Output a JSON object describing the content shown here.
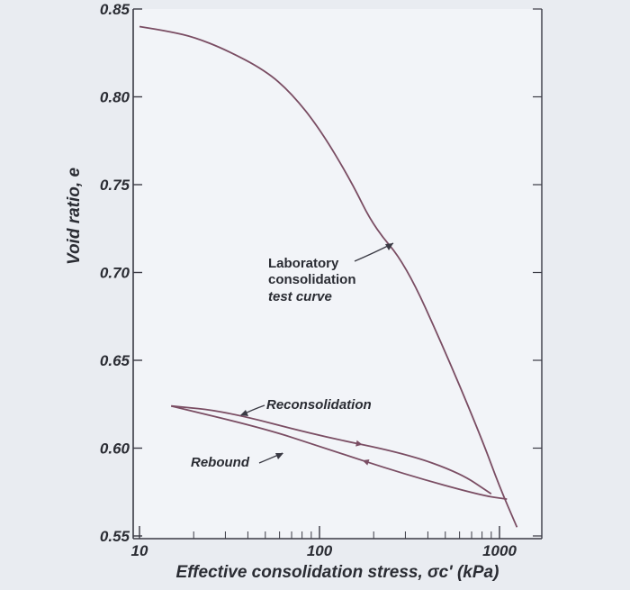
{
  "chart_data": {
    "type": "line",
    "x_scale": "log",
    "xlim": [
      10,
      1500
    ],
    "ylim": [
      0.55,
      0.86
    ],
    "x_ticks": [
      "10",
      "100",
      "1000"
    ],
    "y_ticks": [
      "0.55",
      "0.60",
      "0.65",
      "0.70",
      "0.75",
      "0.80",
      "0.85"
    ],
    "xlabel": "Effective consolidation stress, σc' (kPa)",
    "ylabel": "Void ratio, e",
    "grid": false,
    "series": [
      {
        "name": "Laboratory consolidation test curve",
        "x": [
          10,
          15,
          20,
          30,
          50,
          70,
          100,
          150,
          200,
          300,
          500,
          800,
          1000,
          1250
        ],
        "y": [
          0.84,
          0.837,
          0.834,
          0.827,
          0.815,
          0.802,
          0.782,
          0.752,
          0.726,
          0.705,
          0.655,
          0.605,
          0.578,
          0.555
        ],
        "color": "#7a4d63"
      },
      {
        "name": "Rebound",
        "x": [
          1100,
          800,
          300,
          100,
          50,
          15
        ],
        "y": [
          0.571,
          0.573,
          0.585,
          0.601,
          0.611,
          0.624
        ],
        "color": "#7a4d63"
      },
      {
        "name": "Reconsolidation",
        "x": [
          15,
          30,
          100,
          300,
          600,
          900
        ],
        "y": [
          0.624,
          0.621,
          0.607,
          0.597,
          0.586,
          0.574
        ],
        "color": "#7a4d63"
      }
    ],
    "annotations": [
      {
        "lines": [
          "Laboratory",
          "consolidation",
          "test curve"
        ]
      },
      {
        "lines": [
          "Reconsolidation"
        ]
      },
      {
        "lines": [
          "Rebound"
        ]
      }
    ]
  }
}
